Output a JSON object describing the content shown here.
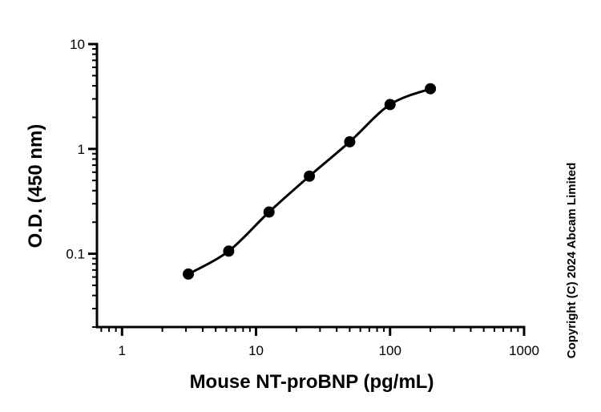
{
  "chart_data": {
    "type": "scatter",
    "title": "",
    "xlabel": "Mouse NT-proBNP (pg/mL)",
    "ylabel": "O.D. (450 nm)",
    "xscale": "log",
    "yscale": "log",
    "xlim": [
      0.65,
      1000
    ],
    "ylim": [
      0.02,
      10
    ],
    "x_ticks": [
      {
        "value": 1,
        "label": "1"
      },
      {
        "value": 10,
        "label": "10"
      },
      {
        "value": 100,
        "label": "100"
      },
      {
        "value": 1000,
        "label": "1000"
      }
    ],
    "y_ticks": [
      {
        "value": 0.1,
        "label": "0.1"
      },
      {
        "value": 1,
        "label": "1"
      },
      {
        "value": 10,
        "label": "10"
      }
    ],
    "grid": false,
    "legend": "none",
    "fit_curve": true,
    "series": [
      {
        "x": [
          3.125,
          6.25,
          12.5,
          25,
          50,
          100,
          200
        ],
        "y": [
          0.064,
          0.106,
          0.25,
          0.55,
          1.17,
          2.65,
          3.75
        ]
      }
    ],
    "colors": {
      "points": "#000000",
      "curve": "#000000",
      "axes": "#000000"
    }
  },
  "copyright": "Copyright (C) 2024 Abcam Limited"
}
